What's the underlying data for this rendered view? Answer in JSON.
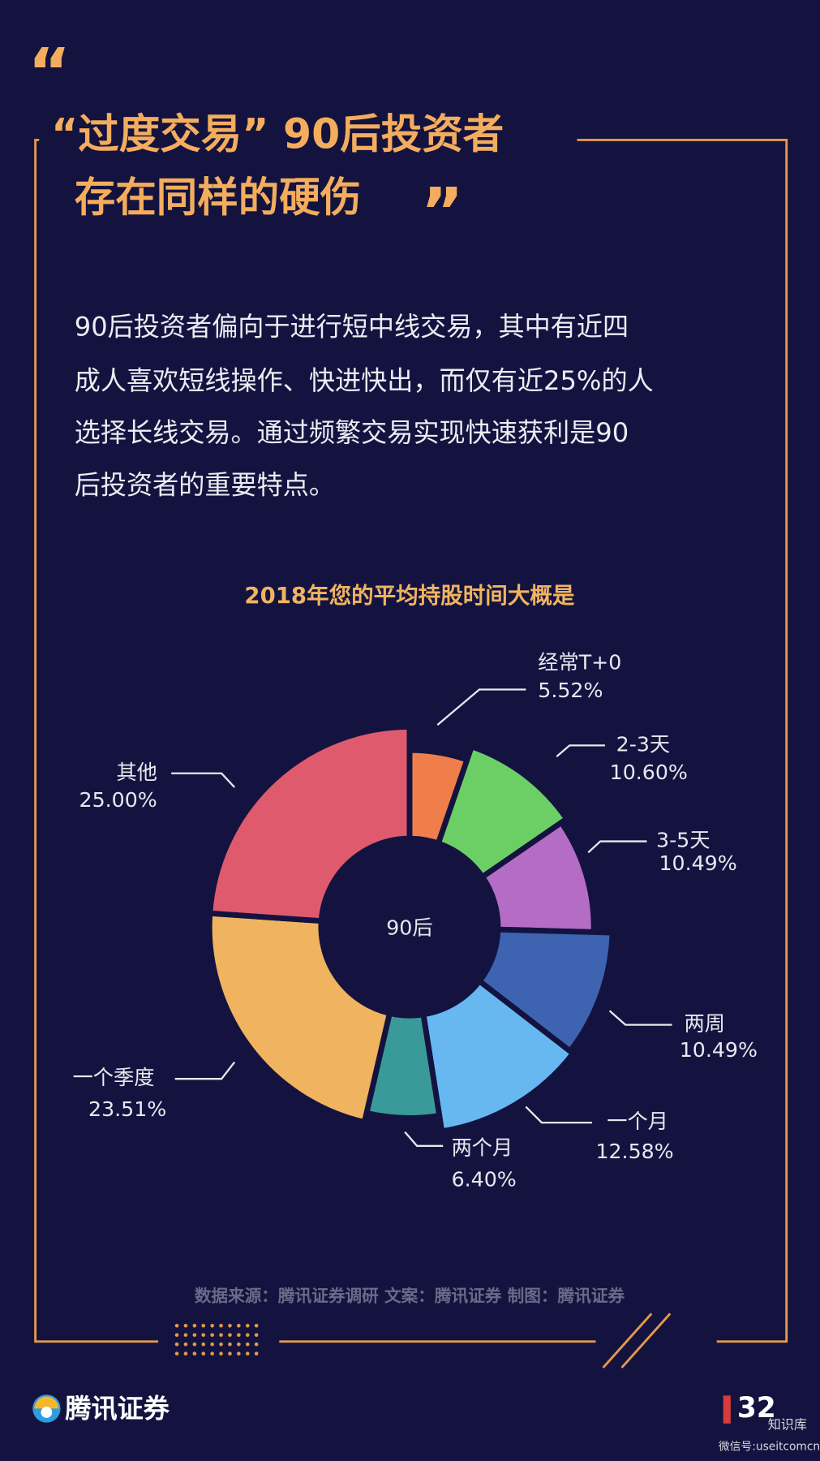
{
  "header": {
    "quote_open": "“",
    "title_lines": [
      "“过度交易” 90后投资者",
      "存在同样的硬伤"
    ],
    "quote_close": "”"
  },
  "paragraph": [
    "90后投资者偏向于进行短中线交易，其中有近四",
    "成人喜欢短线操作、快进快出，而仅有近25%的人",
    "选择长线交易。通过频繁交易实现快速获利是90",
    "后投资者的重要特点。"
  ],
  "chart_data": {
    "type": "donut",
    "title": "2018年您的平均持股时间大概是",
    "center_label": "90后",
    "categories": [
      "经常T+0",
      "2-3天",
      "3-5天",
      "两周",
      "一个月",
      "两个月",
      "一个季度",
      "其他"
    ],
    "values": [
      5.52,
      10.6,
      10.49,
      10.49,
      12.58,
      6.4,
      23.51,
      25.0
    ],
    "value_labels": [
      "5.52%",
      "10.60%",
      "10.49%",
      "10.49%",
      "12.58%",
      "6.40%",
      "23.51%",
      "25.00%"
    ],
    "colors": [
      "#f07e4a",
      "#6ccf66",
      "#b56cc4",
      "#3e63b0",
      "#67b8f0",
      "#3a9a9a",
      "#f0b460",
      "#e05a6e"
    ]
  },
  "footer": {
    "source": "数据来源：腾讯证券调研   文案：腾讯证券   制图：腾讯证券",
    "brand": "腾讯证券",
    "page_number": "32",
    "watermark": "知识库",
    "wechat_id": "微信号:useitcomcn"
  }
}
